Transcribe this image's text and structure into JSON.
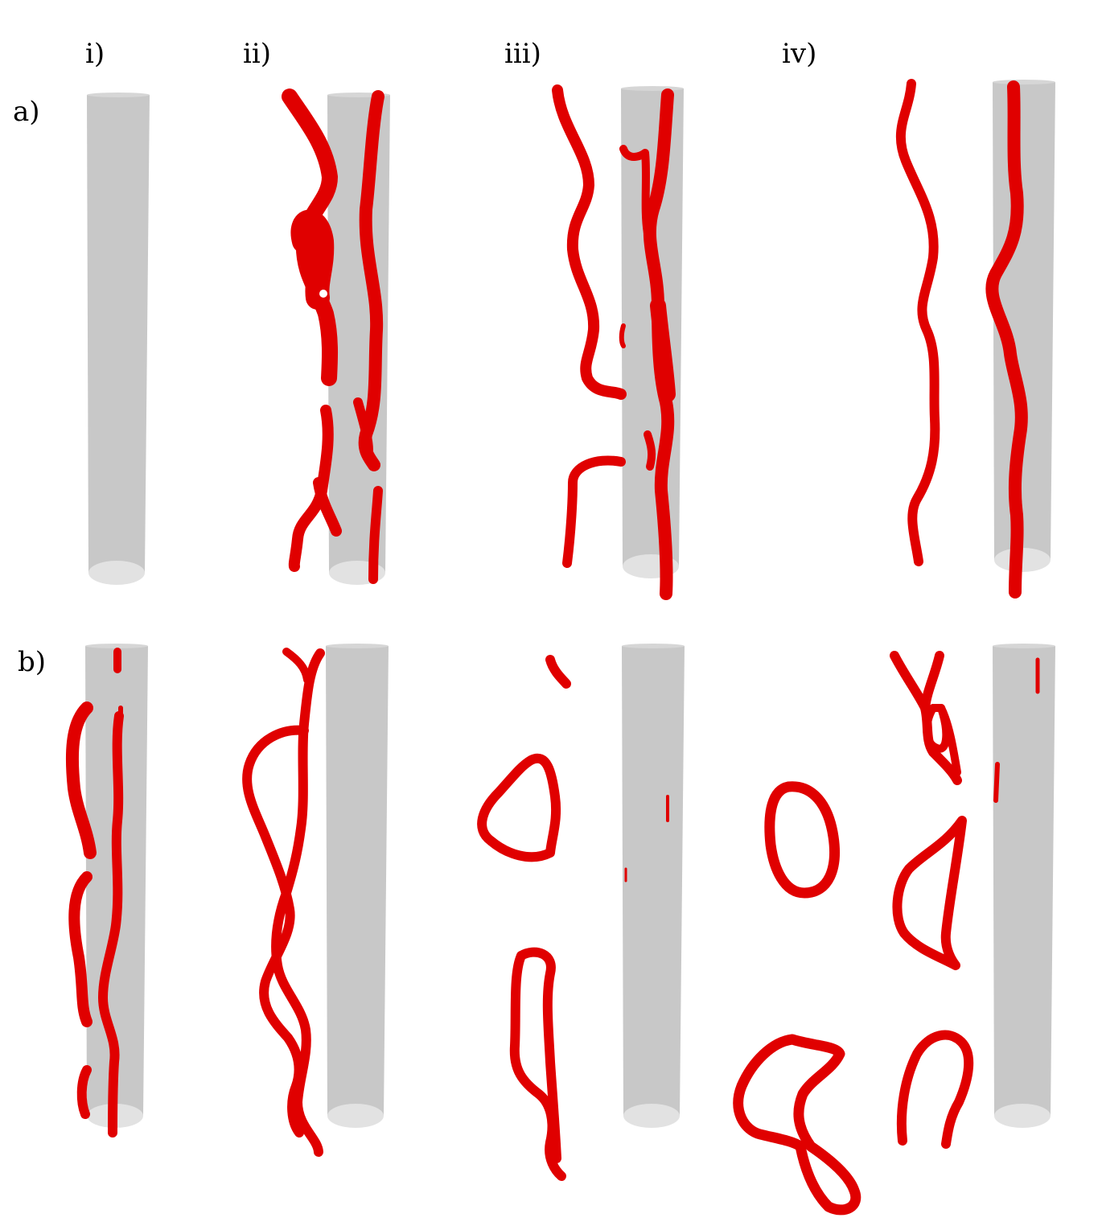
{
  "labels": {
    "col_i": "i)",
    "col_ii": "ii)",
    "col_iii": "iii)",
    "col_iv": "iv)",
    "row_a": "a)",
    "row_b": "b)"
  },
  "colors": {
    "cylinder": "#c8c8c8",
    "cylinder_cap": "#e2e2e2",
    "vortex": "#e00000",
    "vortex_shade": "#a00000"
  },
  "panels": [
    {
      "row": "a",
      "col": "i",
      "cylinder": true
    },
    {
      "row": "a",
      "col": "ii",
      "cylinder": true
    },
    {
      "row": "a",
      "col": "iii",
      "cylinder": true
    },
    {
      "row": "a",
      "col": "iv",
      "cylinder": true
    },
    {
      "row": "b",
      "col": "i",
      "cylinder": true
    },
    {
      "row": "b",
      "col": "ii",
      "cylinder": true
    },
    {
      "row": "b",
      "col": "iii",
      "cylinder": true
    },
    {
      "row": "b",
      "col": "iv",
      "cylinder": true
    }
  ]
}
